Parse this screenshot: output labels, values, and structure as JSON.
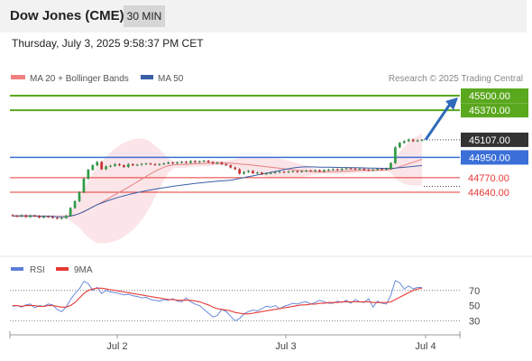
{
  "header": {
    "title": "Dow Jones (CME)",
    "timeframe": "30 MIN",
    "datetime": "Thursday, July 3, 2025 9:58:37 PM CET"
  },
  "legend": {
    "ma20": "MA 20 + Bollinger Bands",
    "ma50": "MA 50",
    "ma20_color": "#f08080",
    "ma50_color": "#3a5ea8",
    "credit": "Research © 2025 Trading Central"
  },
  "chart_data": [
    {
      "type": "candlestick",
      "x_ticks": [
        "Jul 2",
        "Jul 3",
        "Jul 4"
      ],
      "levels": [
        {
          "value": 45500.0,
          "label": "45500.00",
          "kind": "target",
          "color": "#5aa81e"
        },
        {
          "value": 45370.0,
          "label": "45370.00",
          "kind": "target",
          "color": "#5aa81e"
        },
        {
          "value": 45107.0,
          "label": "45107.00",
          "kind": "last",
          "color": "#333333"
        },
        {
          "value": 44950.0,
          "label": "44950.00",
          "kind": "pivot",
          "color": "#3a6fd8"
        },
        {
          "value": 44770.0,
          "label": "44770.00",
          "kind": "support",
          "color": "#e53935"
        },
        {
          "value": 44640.0,
          "label": "44640.00",
          "kind": "support",
          "color": "#e53935"
        }
      ],
      "close": [
        44430,
        44425,
        44435,
        44420,
        44432,
        44428,
        44415,
        44425,
        44420,
        44412,
        44405,
        44410,
        44430,
        44500,
        44560,
        44640,
        44760,
        44840,
        44880,
        44910,
        44845,
        44870,
        44875,
        44890,
        44880,
        44865,
        44890,
        44880,
        44885,
        44892,
        44895,
        44890,
        44883,
        44890,
        44896,
        44905,
        44898,
        44905,
        44910,
        44902,
        44918,
        44908,
        44915,
        44920,
        44908,
        44895,
        44905,
        44890,
        44880,
        44860,
        44845,
        44805,
        44820,
        44830,
        44810,
        44815,
        44802,
        44808,
        44812,
        44818,
        44822,
        44818,
        44825,
        44826,
        44822,
        44828,
        44832,
        44830,
        44835,
        44826,
        44836,
        44840,
        44845,
        44838,
        44848,
        44852,
        44850,
        44845,
        44848,
        44840,
        44835,
        44840,
        44846,
        44842,
        44850,
        44900,
        45040,
        45080,
        45095,
        45110,
        45095,
        45102,
        45107
      ]
    },
    {
      "type": "line",
      "title": "RSI",
      "series": [
        {
          "name": "RSI"
        },
        {
          "name": "9MA"
        }
      ],
      "rsi_color": "#5b7fd8",
      "ma_color": "#e53935",
      "y_ticks": [
        70,
        50,
        30
      ],
      "ylim": [
        15,
        90
      ],
      "rsi": [
        49,
        50,
        48,
        51,
        52,
        47,
        50,
        49,
        52,
        51,
        45,
        42,
        48,
        58,
        66,
        72,
        82,
        79,
        70,
        74,
        66,
        70,
        68,
        67,
        66,
        64,
        65,
        63,
        62,
        60,
        61,
        58,
        57,
        56,
        58,
        57,
        59,
        56,
        55,
        60,
        55,
        52,
        50,
        45,
        40,
        35,
        37,
        45,
        42,
        36,
        30,
        33,
        39,
        42,
        44,
        43,
        46,
        49,
        48,
        50,
        46,
        49,
        51,
        53,
        52,
        54,
        55,
        52,
        54,
        57,
        55,
        53,
        53,
        56,
        54,
        57,
        53,
        58,
        55,
        54,
        59,
        48,
        56,
        53,
        52,
        64,
        83,
        80,
        72,
        76,
        72,
        74,
        74
      ],
      "ma": [
        50,
        50,
        49,
        50,
        50,
        50,
        49,
        49,
        50,
        50,
        49,
        48,
        48,
        50,
        54,
        60,
        66,
        70,
        72,
        73,
        73,
        72,
        71,
        70,
        69,
        68,
        67,
        66,
        65,
        64,
        63,
        62,
        61,
        60,
        59,
        58,
        58,
        57,
        57,
        57,
        57,
        56,
        55,
        53,
        51,
        48,
        46,
        45,
        44,
        43,
        41,
        40,
        39,
        39,
        40,
        41,
        42,
        43,
        44,
        45,
        46,
        47,
        48,
        49,
        50,
        51,
        51,
        52,
        52,
        53,
        53,
        54,
        54,
        54,
        55,
        55,
        55,
        55,
        55,
        55,
        55,
        54,
        54,
        54,
        54,
        55,
        58,
        61,
        64,
        67,
        70,
        72,
        73
      ]
    }
  ]
}
